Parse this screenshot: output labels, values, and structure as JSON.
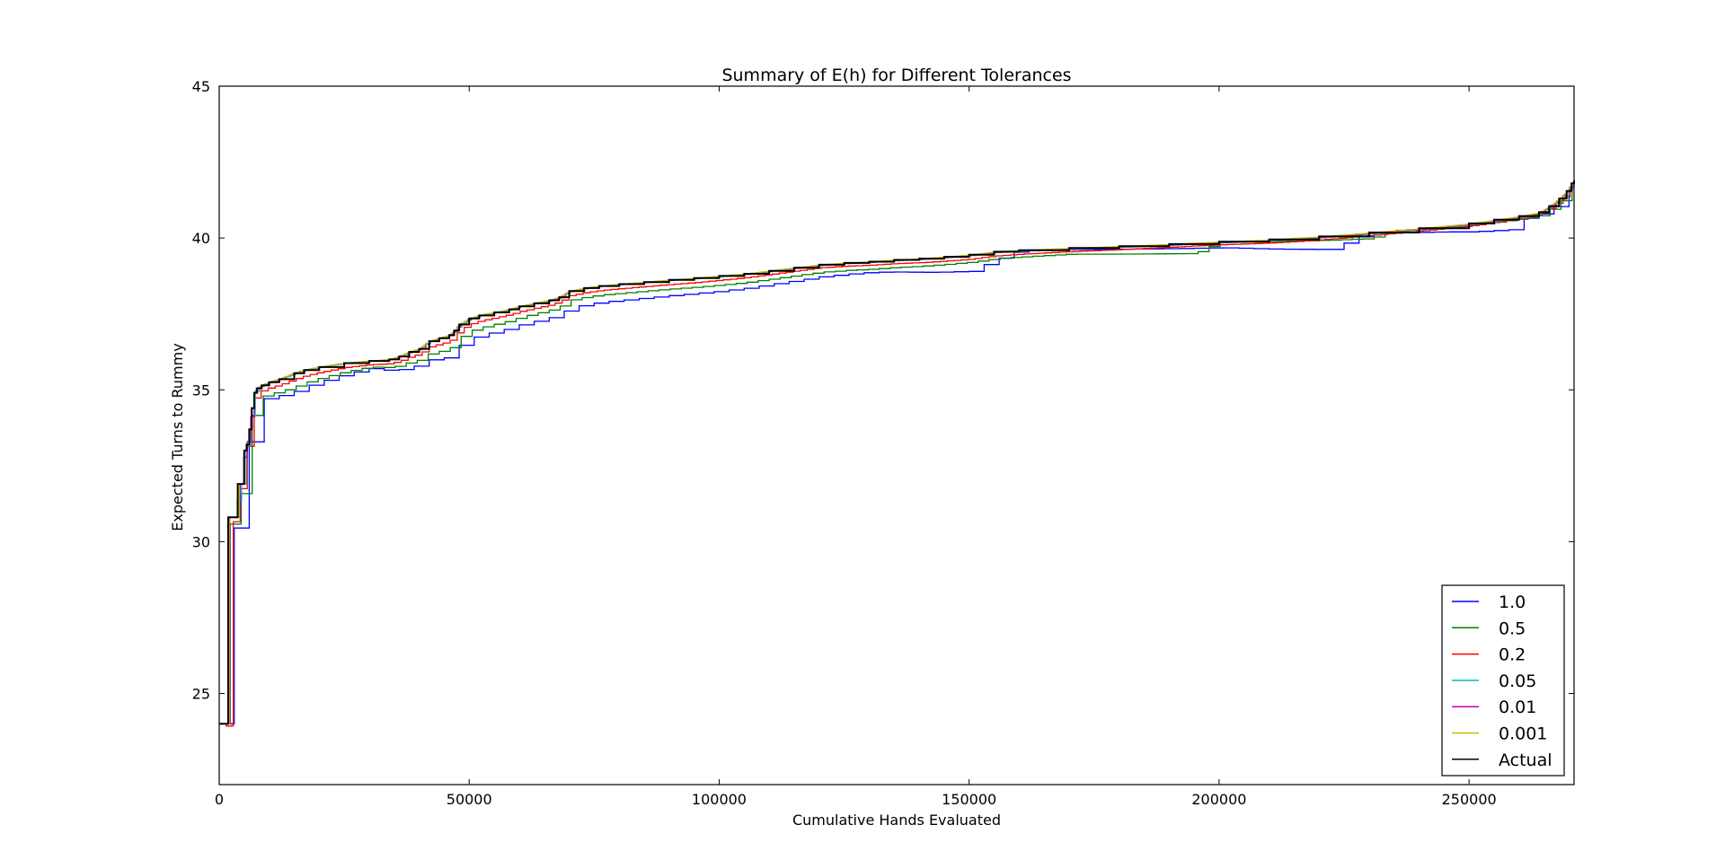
{
  "chart_data": {
    "type": "line",
    "title": "Summary of E(h) for Different Tolerances",
    "xlabel": "Cumulative Hands Evaluated",
    "ylabel": "Expected Turns to Rummy",
    "xlim": [
      0,
      271000
    ],
    "ylim": [
      22,
      45
    ],
    "xticks": [
      0,
      50000,
      100000,
      150000,
      200000,
      250000
    ],
    "yticks": [
      25,
      30,
      35,
      40,
      45
    ],
    "legend_position": "lower right",
    "grid": false,
    "actual": {
      "name": "Actual",
      "color": "#000000",
      "x": [
        0,
        1700,
        1800,
        3500,
        3700,
        4500,
        5000,
        5500,
        6000,
        6500,
        7000,
        7500,
        8500,
        10000,
        12000,
        15000,
        17000,
        20000,
        25000,
        30000,
        34000,
        36000,
        38000,
        40000,
        42000,
        44000,
        46000,
        47000,
        48000,
        50000,
        52000,
        55000,
        58000,
        60000,
        63000,
        66000,
        68000,
        70000,
        73000,
        76000,
        80000,
        85000,
        90000,
        95000,
        100000,
        105000,
        110000,
        115000,
        120000,
        125000,
        130000,
        135000,
        140000,
        145000,
        150000,
        155000,
        160000,
        170000,
        180000,
        190000,
        200000,
        210000,
        220000,
        230000,
        240000,
        250000,
        255000,
        260000,
        264000,
        266000,
        268000,
        269500,
        270500,
        271000
      ],
      "y": [
        24.0,
        24.0,
        30.8,
        30.8,
        31.9,
        31.9,
        33.0,
        33.2,
        33.7,
        34.4,
        34.9,
        35.05,
        35.15,
        35.25,
        35.35,
        35.55,
        35.65,
        35.75,
        35.88,
        35.95,
        36.0,
        36.1,
        36.25,
        36.35,
        36.6,
        36.7,
        36.8,
        36.95,
        37.15,
        37.35,
        37.45,
        37.55,
        37.65,
        37.75,
        37.85,
        37.95,
        38.05,
        38.25,
        38.35,
        38.42,
        38.48,
        38.55,
        38.62,
        38.68,
        38.75,
        38.82,
        38.92,
        39.02,
        39.12,
        39.18,
        39.22,
        39.28,
        39.32,
        39.38,
        39.45,
        39.55,
        39.6,
        39.67,
        39.73,
        39.8,
        39.88,
        39.95,
        40.05,
        40.18,
        40.32,
        40.48,
        40.6,
        40.72,
        40.85,
        41.05,
        41.3,
        41.55,
        41.8,
        41.9
      ]
    },
    "series": [
      {
        "name": "1.0",
        "color": "#0000ff",
        "offsets": [
          [
            0,
            0
          ],
          [
            3000,
            -0.35
          ],
          [
            15000,
            -0.6
          ],
          [
            30000,
            -0.25
          ],
          [
            45000,
            -0.7
          ],
          [
            70000,
            -0.55
          ],
          [
            100000,
            -0.5
          ],
          [
            130000,
            -0.35
          ],
          [
            150000,
            -0.55
          ],
          [
            160000,
            0.0
          ],
          [
            200000,
            -0.2
          ],
          [
            222000,
            -0.45
          ],
          [
            230000,
            0.0
          ],
          [
            245000,
            -0.2
          ],
          [
            258000,
            -0.4
          ],
          [
            262000,
            0.0
          ],
          [
            271000,
            -0.25
          ]
        ]
      },
      {
        "name": "0.5",
        "color": "#008000",
        "offsets": [
          [
            0,
            0
          ],
          [
            3000,
            -0.3
          ],
          [
            15000,
            -0.45
          ],
          [
            30000,
            -0.2
          ],
          [
            45000,
            -0.45
          ],
          [
            70000,
            -0.3
          ],
          [
            100000,
            -0.3
          ],
          [
            120000,
            -0.25
          ],
          [
            150000,
            -0.25
          ],
          [
            170000,
            -0.2
          ],
          [
            195000,
            -0.35
          ],
          [
            200000,
            0.0
          ],
          [
            230000,
            -0.2
          ],
          [
            235000,
            0.0
          ],
          [
            260000,
            -0.1
          ],
          [
            271000,
            -0.15
          ]
        ]
      },
      {
        "name": "0.2",
        "color": "#ff0000",
        "offsets": [
          [
            0,
            0
          ],
          [
            3000,
            -0.15
          ],
          [
            15000,
            -0.2
          ],
          [
            30000,
            -0.12
          ],
          [
            45000,
            -0.2
          ],
          [
            70000,
            -0.15
          ],
          [
            95000,
            -0.15
          ],
          [
            120000,
            -0.1
          ],
          [
            150000,
            -0.15
          ],
          [
            170000,
            -0.12
          ],
          [
            195000,
            -0.1
          ],
          [
            215000,
            -0.12
          ],
          [
            230000,
            -0.1
          ],
          [
            260000,
            -0.08
          ],
          [
            271000,
            -0.08
          ]
        ]
      },
      {
        "name": "0.05",
        "color": "#00bfbf",
        "offsets": [
          [
            0,
            0
          ],
          [
            271000,
            -0.06
          ]
        ]
      },
      {
        "name": "0.01",
        "color": "#bf00bf",
        "offsets": [
          [
            0,
            0
          ],
          [
            271000,
            -0.04
          ]
        ]
      },
      {
        "name": "0.001",
        "color": "#bfbf00",
        "offsets": [
          [
            0,
            0
          ],
          [
            271000,
            -0.02
          ]
        ]
      }
    ]
  }
}
